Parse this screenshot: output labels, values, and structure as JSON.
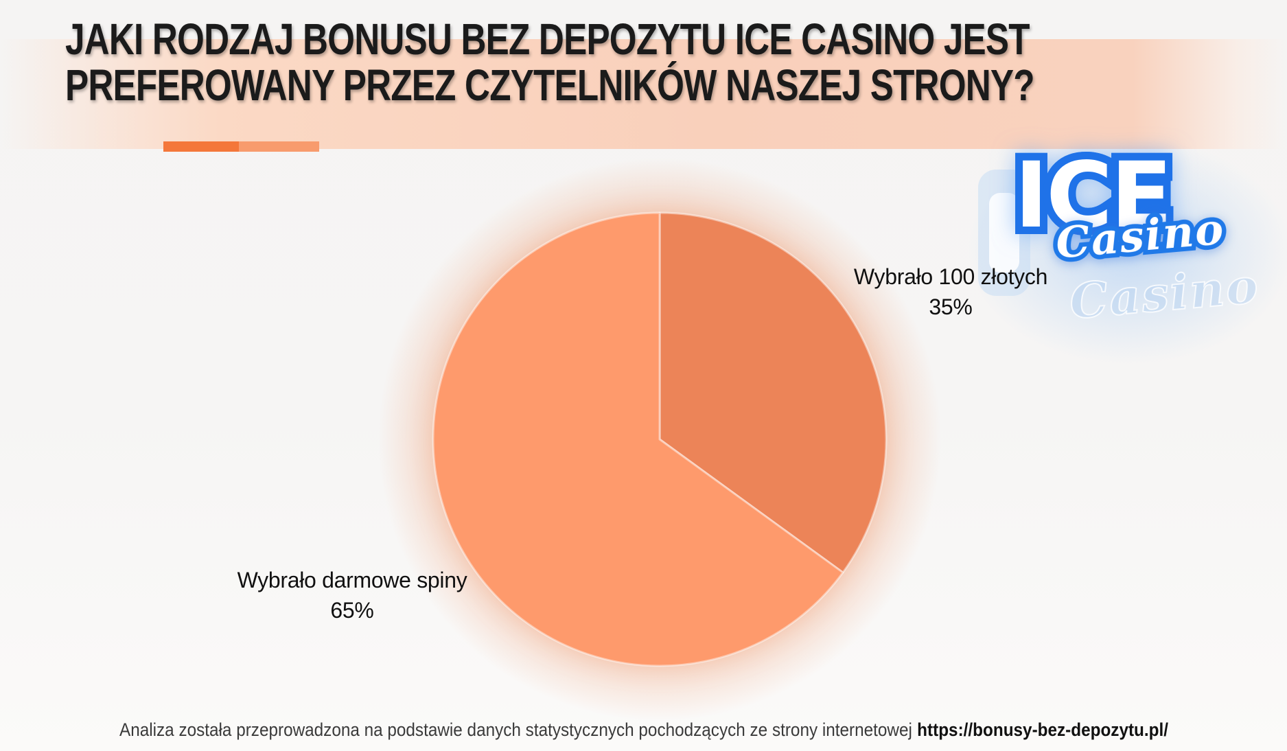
{
  "header": {
    "title_line1": "JAKI RODZAJ BONUSU BEZ DEPOZYTU ICE CASINO JEST",
    "title_line2": "PREFEROWANY PRZEZ CZYTELNIKÓW NASZEJ STRONY?"
  },
  "logo": {
    "ice": "ICE",
    "casino": "Casino"
  },
  "chart_data": {
    "type": "pie",
    "title": "JAKI RODZAJ BONUSU BEZ DEPOZYTU ICE CASINO JEST PREFEROWANY PRZEZ CZYTELNIKÓW NASZEJ STRONY?",
    "value_suffix": "%",
    "start_angle_deg": -90,
    "direction": "clockwise",
    "legend_position": "labels-outside",
    "slices": [
      {
        "label": "Wybrało 100 złotych",
        "value": 35,
        "color": "#EC8458"
      },
      {
        "label": "Wybrało darmowe spiny",
        "value": 65,
        "color": "#FE9A6C"
      }
    ]
  },
  "labels": {
    "right": {
      "line1": "Wybrało 100 złotych",
      "line2": "35%"
    },
    "left": {
      "line1": "Wybrało darmowe spiny",
      "line2": "65%"
    }
  },
  "footer": {
    "text": "Analiza została przeprowadzona na podstawie danych statystycznych pochodzących ze strony internetowej",
    "url": "https://bonusy-bez-depozytu.pl/"
  },
  "colors": {
    "accent_bar_dark": "#F4773A",
    "accent_bar_light": "#F89B6D",
    "slice_35_percent": "#EC8458",
    "slice_65_percent": "#FE9A6C",
    "header_band_peach": "#F9D0BB",
    "logo_blue": "#1F72E8",
    "title_text": "#1B1B1B",
    "footer_text": "#3A3A3A",
    "background": "#F6F5F4"
  }
}
